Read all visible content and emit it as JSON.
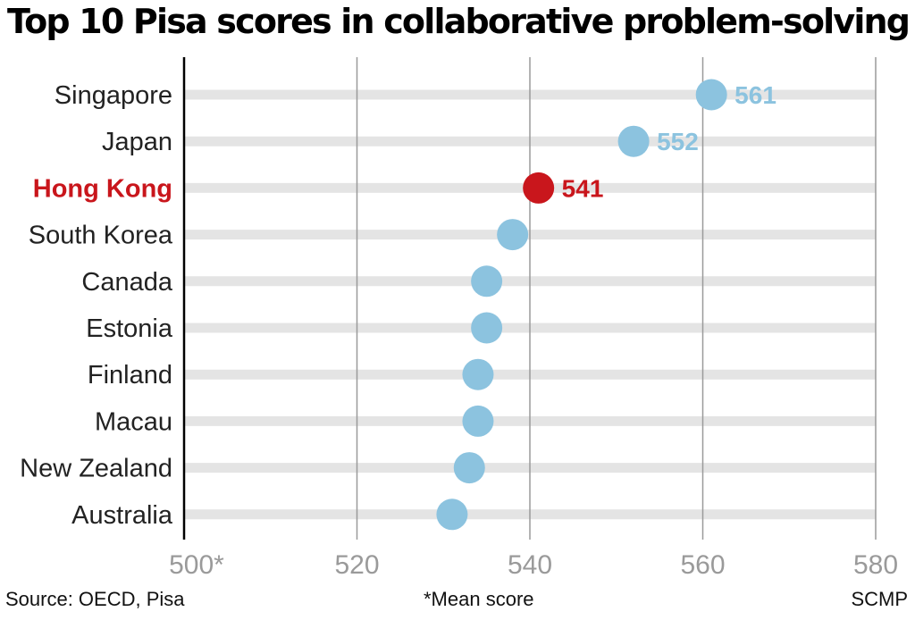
{
  "title": "Top 10 Pisa scores in collaborative problem-solving",
  "source": "Source: OECD, Pisa",
  "note": "*Mean score",
  "credit": "SCMP",
  "chart_data": {
    "type": "dot",
    "title": "Top 10 Pisa scores in collaborative problem-solving",
    "xlim": [
      500,
      580
    ],
    "x_ticks": [
      500,
      520,
      540,
      560,
      580
    ],
    "x_tick_labels": [
      "500*",
      "520",
      "540",
      "560",
      "580"
    ],
    "grid": true,
    "categories": [
      "Singapore",
      "Japan",
      "Hong Kong",
      "South Korea",
      "Canada",
      "Estonia",
      "Finland",
      "Macau",
      "New Zealand",
      "Australia"
    ],
    "values": [
      561,
      552,
      541,
      538,
      535,
      535,
      534,
      534,
      533,
      531
    ],
    "data_labels": [
      "561",
      "552",
      "541",
      null,
      null,
      null,
      null,
      null,
      null,
      null
    ],
    "highlight": "Hong Kong",
    "colors": {
      "default": "#8cc3df",
      "highlight": "#c9161c",
      "track": "#e4e4e4",
      "grid": "#9a9a9a",
      "axis": "#000000",
      "label_default": "#222222",
      "tick": "#9a9a9a",
      "value_label": "#8cc3df"
    }
  }
}
